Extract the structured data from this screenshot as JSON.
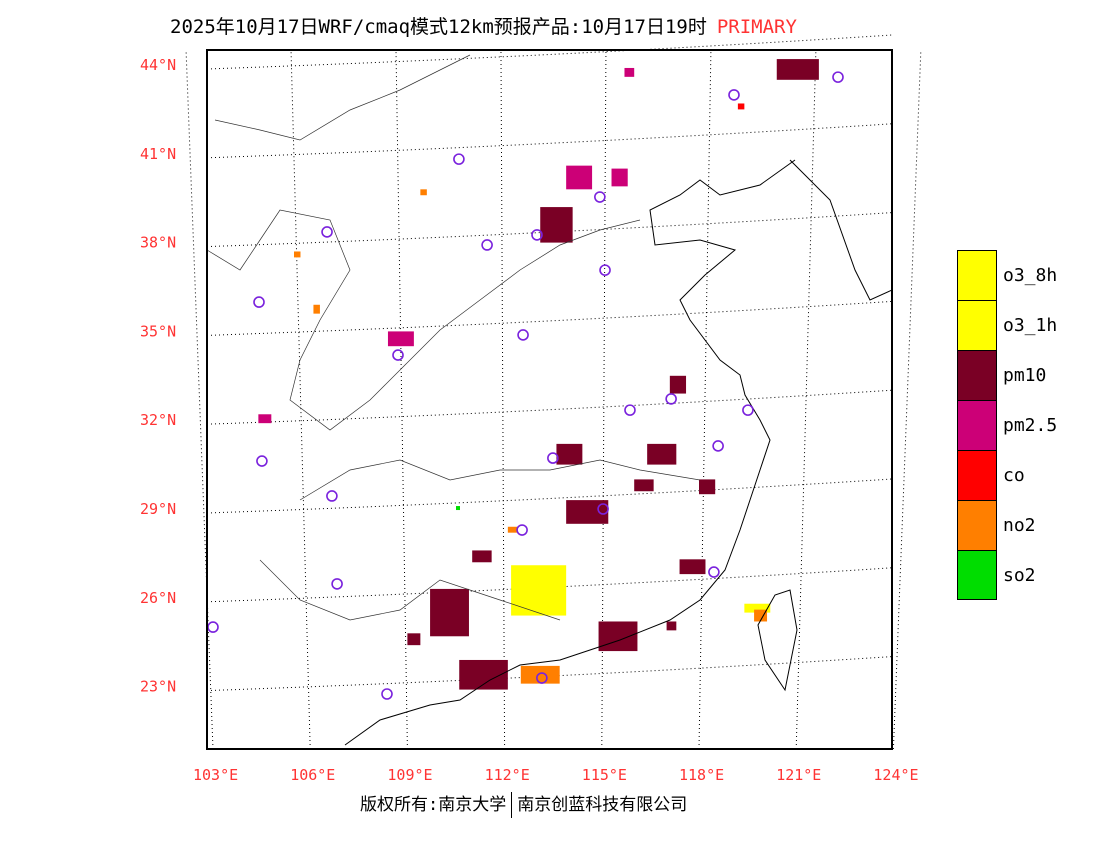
{
  "title": {
    "text": "2025年10月17日WRF/cmaq模式12km预报产品:10月17日19时",
    "tag": "PRIMARY"
  },
  "footer": {
    "left": "版权所有:南京大学",
    "right": "南京创蓝科技有限公司"
  },
  "chart_data": {
    "type": "map",
    "lat_ticks": [
      "44°N",
      "41°N",
      "38°N",
      "35°N",
      "32°N",
      "29°N",
      "26°N",
      "23°N"
    ],
    "lat_values": [
      44,
      41,
      38,
      35,
      32,
      29,
      26,
      23
    ],
    "lon_ticks": [
      "103°E",
      "106°E",
      "109°E",
      "112°E",
      "115°E",
      "118°E",
      "121°E",
      "124°E"
    ],
    "lon_values": [
      103,
      106,
      109,
      112,
      115,
      118,
      121,
      124
    ],
    "legend": [
      {
        "label": "o3_8h",
        "color": "#ffff00"
      },
      {
        "label": "o3_1h",
        "color": "#ffff00"
      },
      {
        "label": "pm10",
        "color": "#7a0025"
      },
      {
        "label": "pm2.5",
        "color": "#cc0077"
      },
      {
        "label": "co",
        "color": "#ff0000"
      },
      {
        "label": "no2",
        "color": "#ff7f00"
      },
      {
        "label": "so2",
        "color": "#00dd00"
      }
    ],
    "patches": [
      [
        113.1,
        39.2,
        114.1,
        38.0,
        "pm10"
      ],
      [
        113.9,
        40.6,
        114.7,
        39.8,
        "pm2.5"
      ],
      [
        115.3,
        40.5,
        115.8,
        39.9,
        "pm2.5"
      ],
      [
        112.2,
        27.1,
        113.9,
        25.4,
        "o3_8h"
      ],
      [
        109.7,
        26.3,
        110.9,
        24.7,
        "pm10"
      ],
      [
        110.6,
        23.9,
        112.1,
        22.9,
        "pm10"
      ],
      [
        112.5,
        23.7,
        113.7,
        23.1,
        "no2"
      ],
      [
        113.9,
        29.3,
        115.2,
        28.5,
        "pm10"
      ],
      [
        114.9,
        25.2,
        116.1,
        24.2,
        "pm10"
      ],
      [
        116.4,
        31.2,
        117.3,
        30.5,
        "pm10"
      ],
      [
        120.4,
        44.2,
        121.7,
        43.5,
        "pm10"
      ],
      [
        108.4,
        35.0,
        109.2,
        34.5,
        "pm2.5"
      ],
      [
        113.6,
        31.2,
        114.4,
        30.5,
        "pm10"
      ],
      [
        117.4,
        27.3,
        118.2,
        26.8,
        "pm10"
      ],
      [
        119.4,
        25.8,
        120.2,
        25.5,
        "o3_8h"
      ],
      [
        119.7,
        25.6,
        120.1,
        25.2,
        "no2"
      ],
      [
        117.1,
        33.5,
        117.6,
        32.9,
        "pm10"
      ],
      [
        111.0,
        27.6,
        111.6,
        27.2,
        "pm10"
      ],
      [
        116.0,
        30.0,
        116.6,
        29.6,
        "pm10"
      ],
      [
        118.0,
        30.0,
        118.5,
        29.5,
        "pm10"
      ],
      [
        109.0,
        24.8,
        109.4,
        24.4,
        "pm10"
      ],
      [
        112.1,
        28.4,
        112.4,
        28.2,
        "no2"
      ],
      [
        110.5,
        29.1,
        110.6,
        29.0,
        "so2"
      ],
      [
        115.7,
        43.9,
        116.0,
        43.6,
        "pm2.5"
      ],
      [
        119.2,
        42.7,
        119.4,
        42.5,
        "co"
      ],
      [
        104.4,
        32.2,
        104.8,
        31.9,
        "pm2.5"
      ],
      [
        117.0,
        25.2,
        117.3,
        24.9,
        "pm10"
      ],
      [
        105.5,
        37.7,
        105.7,
        37.5,
        "no2"
      ],
      [
        109.4,
        39.8,
        109.6,
        39.6,
        "no2"
      ],
      [
        106.1,
        35.9,
        106.3,
        35.6,
        "no2"
      ]
    ],
    "stations": [
      [
        119.08,
        42.99
      ],
      [
        110.59,
        40.82
      ],
      [
        106.52,
        38.36
      ],
      [
        111.46,
        37.92
      ],
      [
        113.0,
        38.26
      ],
      [
        114.94,
        39.54
      ],
      [
        115.1,
        37.07
      ],
      [
        104.42,
        35.99
      ],
      [
        112.57,
        34.88
      ],
      [
        108.71,
        34.2
      ],
      [
        115.87,
        32.34
      ],
      [
        117.14,
        32.72
      ],
      [
        119.51,
        32.34
      ],
      [
        118.59,
        31.13
      ],
      [
        104.51,
        30.62
      ],
      [
        113.49,
        30.72
      ],
      [
        106.67,
        29.44
      ],
      [
        115.04,
        29.0
      ],
      [
        112.54,
        28.29
      ],
      [
        106.83,
        26.47
      ],
      [
        103.0,
        25.01
      ],
      [
        118.46,
        26.87
      ],
      [
        108.37,
        22.75
      ],
      [
        113.15,
        23.29
      ],
      [
        122.29,
        43.59
      ]
    ]
  }
}
